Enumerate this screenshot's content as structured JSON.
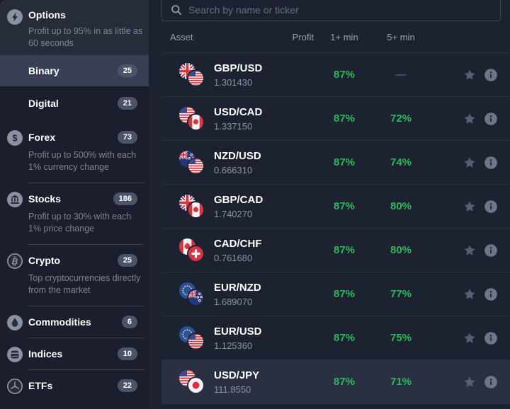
{
  "sidebar": {
    "options_header": {
      "label": "Options",
      "description": "Profit up to 95% in as little as 60 seconds"
    },
    "items": [
      {
        "label": "Binary",
        "count": "25",
        "selected": true
      },
      {
        "label": "Digital",
        "count": "21"
      },
      {
        "label": "Forex",
        "count": "73",
        "description": "Profit up to 500% with each 1% currency change"
      },
      {
        "label": "Stocks",
        "count": "186",
        "description": "Profit up to 30% with each 1% price change"
      },
      {
        "label": "Crypto",
        "count": "25",
        "description": "Top cryptocurrencies directly from the market"
      },
      {
        "label": "Commodities",
        "count": "6"
      },
      {
        "label": "Indices",
        "count": "10"
      },
      {
        "label": "ETFs",
        "count": "22"
      }
    ]
  },
  "search": {
    "placeholder": "Search by name or ticker"
  },
  "table": {
    "headers": {
      "asset": "Asset",
      "profit": "Profit",
      "m1": "1+ min",
      "m5": "5+ min"
    },
    "rows": [
      {
        "pair": "GBP/USD",
        "price": "1.301430",
        "profit1": "87%",
        "profit5": "—",
        "flags": [
          "gb",
          "us"
        ]
      },
      {
        "pair": "USD/CAD",
        "price": "1.337150",
        "profit1": "87%",
        "profit5": "72%",
        "flags": [
          "us",
          "ca"
        ]
      },
      {
        "pair": "NZD/USD",
        "price": "0.666310",
        "profit1": "87%",
        "profit5": "74%",
        "flags": [
          "nz",
          "us"
        ]
      },
      {
        "pair": "GBP/CAD",
        "price": "1.740270",
        "profit1": "87%",
        "profit5": "80%",
        "flags": [
          "gb",
          "ca"
        ]
      },
      {
        "pair": "CAD/CHF",
        "price": "0.761680",
        "profit1": "87%",
        "profit5": "80%",
        "flags": [
          "ca",
          "ch"
        ]
      },
      {
        "pair": "EUR/NZD",
        "price": "1.689070",
        "profit1": "87%",
        "profit5": "77%",
        "flags": [
          "eu",
          "nz"
        ]
      },
      {
        "pair": "EUR/USD",
        "price": "1.125360",
        "profit1": "87%",
        "profit5": "75%",
        "flags": [
          "eu",
          "us"
        ]
      },
      {
        "pair": "USD/JPY",
        "price": "111.8550",
        "profit1": "87%",
        "profit5": "71%",
        "flags": [
          "us",
          "jp"
        ],
        "highlighted": true
      }
    ]
  },
  "colors": {
    "profit_green": "#2cb85c",
    "sidebar_selected_bg": "#394056",
    "row_highlight_bg": "#2a3041",
    "badge_bg": "#4c5366",
    "main_bg": "#1d2231",
    "sidebar_bg": "#1b1f2d"
  }
}
